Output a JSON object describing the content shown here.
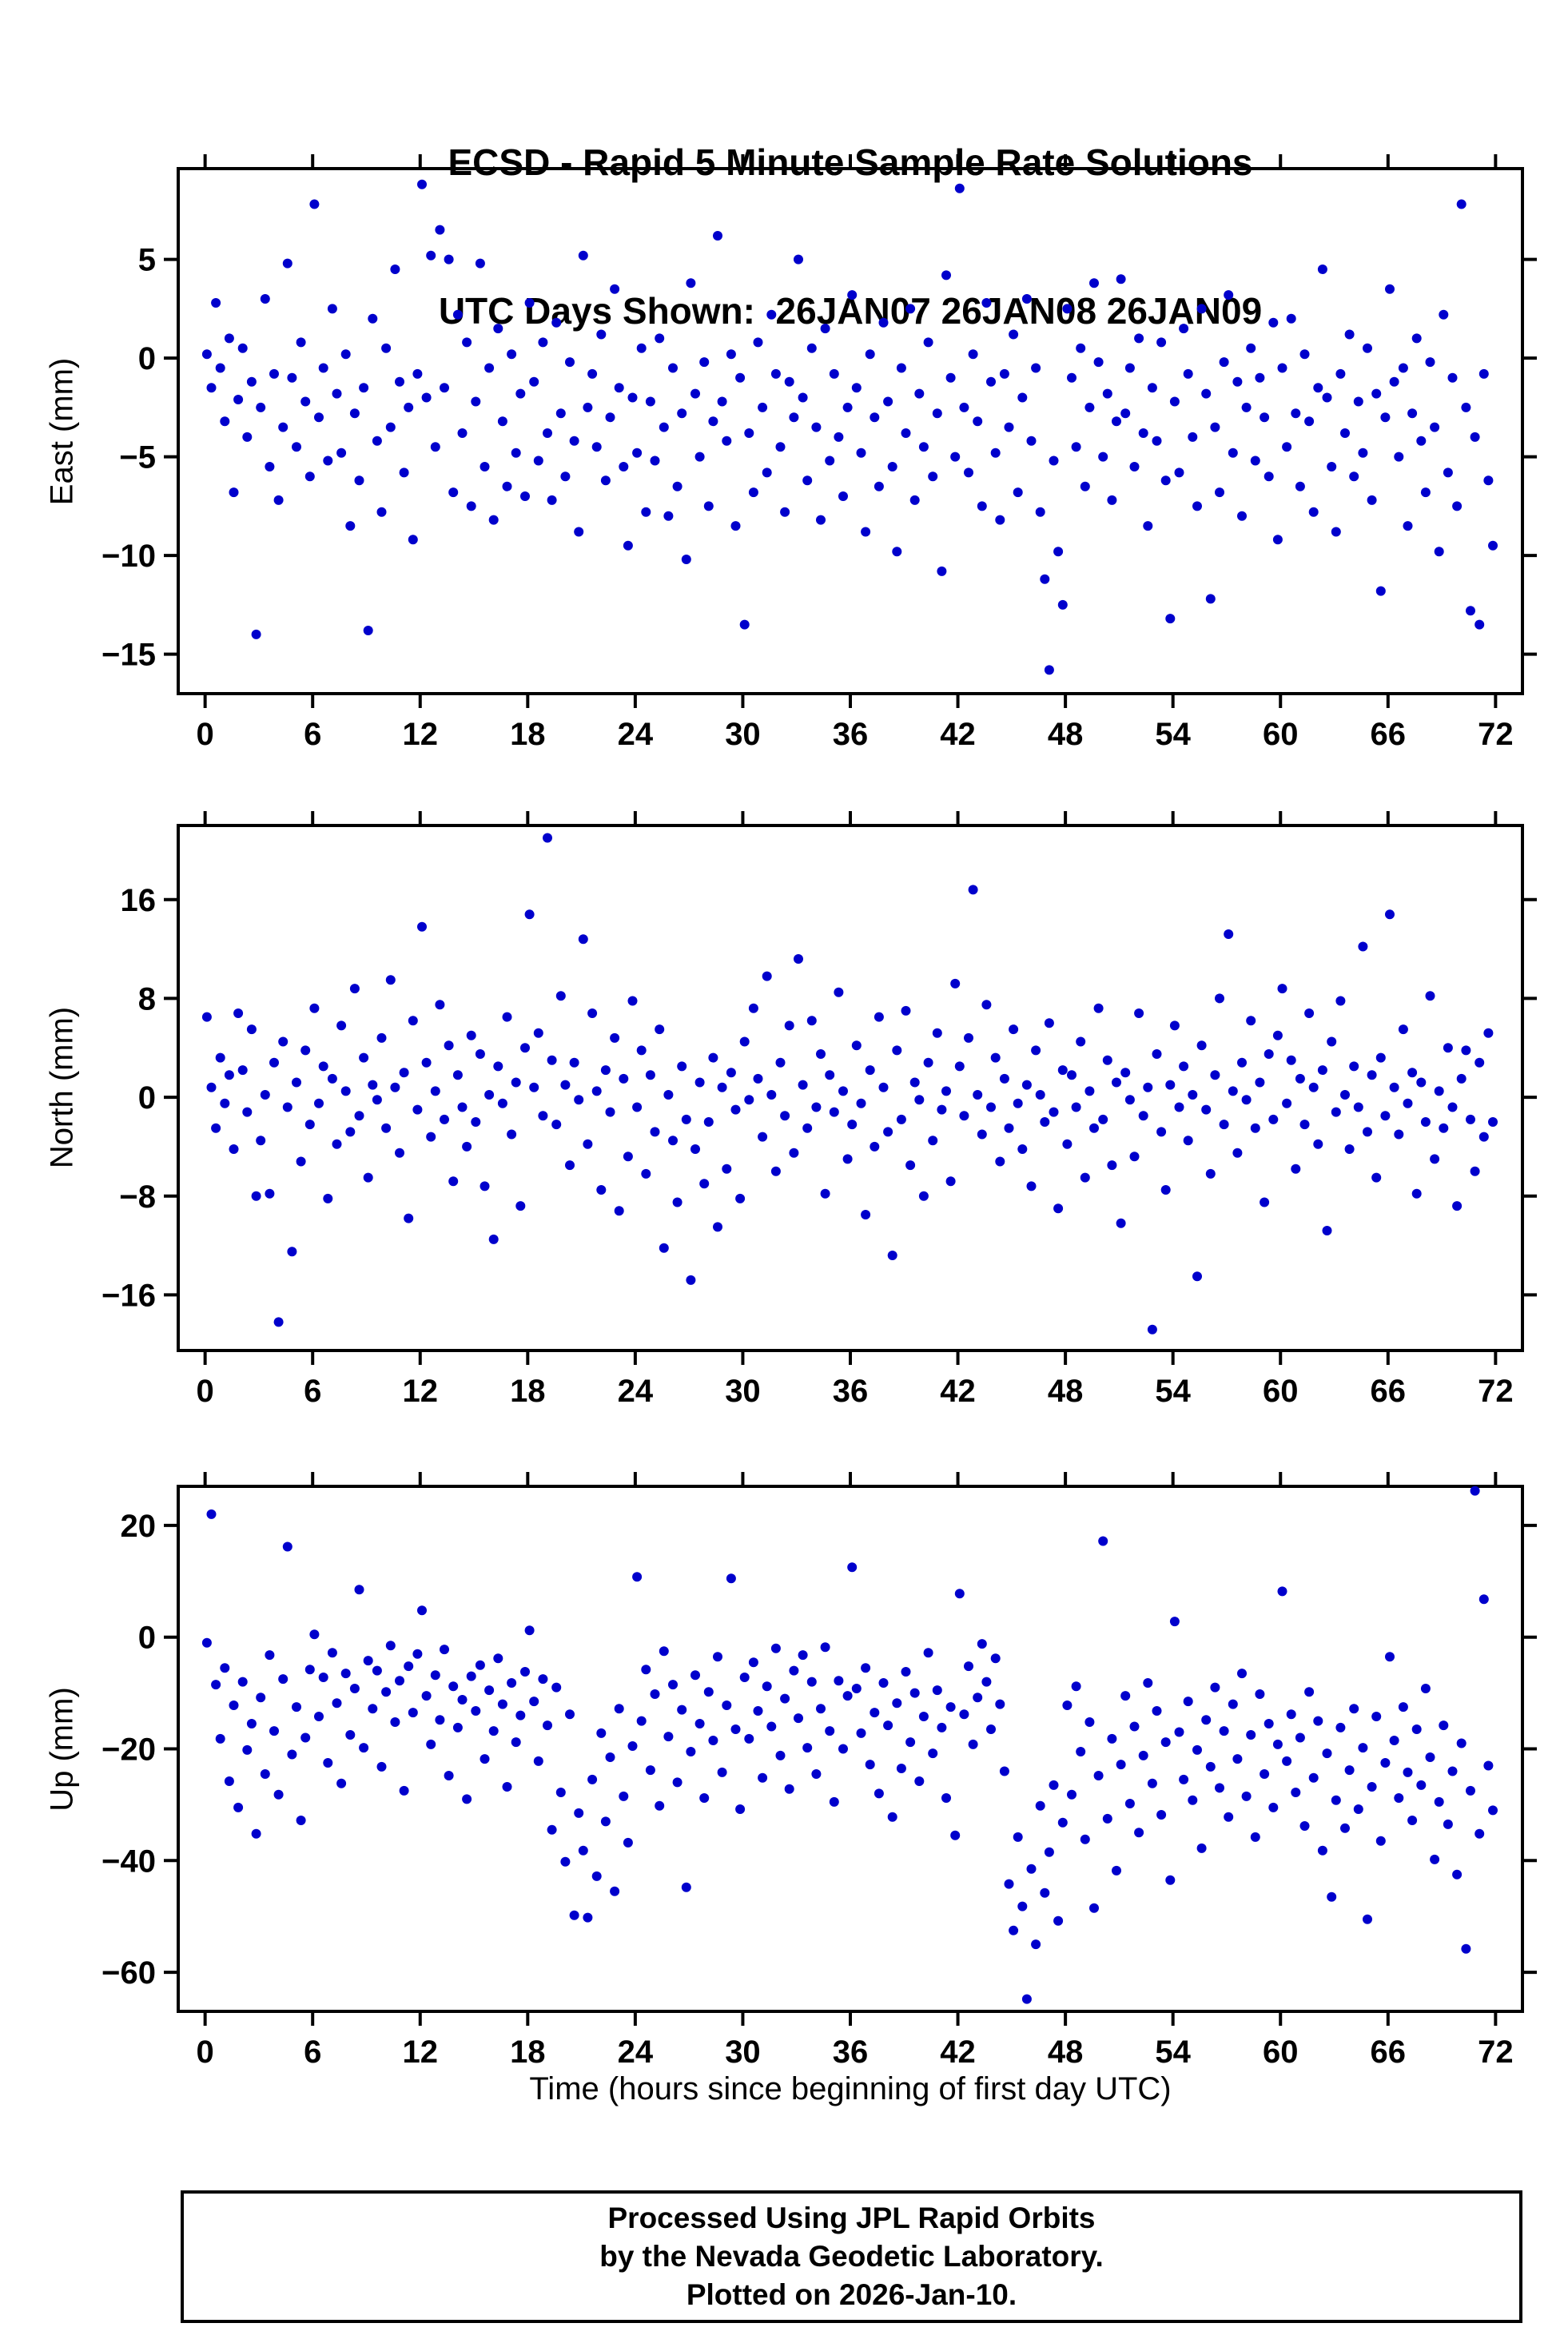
{
  "title": {
    "line1": "ECSD - Rapid 5 Minute Sample Rate Solutions",
    "line2": "UTC Days Shown:  26JAN07 26JAN08 26JAN09"
  },
  "x_axis_title": "Time (hours since beginning of first day UTC)",
  "footer": {
    "line1": "Processed Using JPL Rapid Orbits",
    "line2": "by the Nevada Geodetic Laboratory.",
    "line3": "Plotted on 2026-Jan-10."
  },
  "colors": {
    "point": "#0000cc",
    "frame": "#000000",
    "background": "#ffffff"
  },
  "chart_data": [
    {
      "type": "scatter",
      "name": "east",
      "ylabel": "East (mm)",
      "xlabel": "",
      "xlim": [
        -1.5,
        73.5
      ],
      "ylim": [
        -17,
        9.6
      ],
      "xticks": [
        0,
        6,
        12,
        18,
        24,
        30,
        36,
        42,
        48,
        54,
        60,
        66,
        72
      ],
      "yticks": [
        5,
        0,
        -5,
        -10,
        -15
      ],
      "x_start": 0.1,
      "x_step": 0.25,
      "values": [
        0.2,
        -1.5,
        2.8,
        -0.5,
        -3.2,
        1.0,
        -6.8,
        -2.1,
        0.5,
        -4.0,
        -1.2,
        -14.0,
        -2.5,
        3.0,
        -5.5,
        -0.8,
        -7.2,
        -3.5,
        4.8,
        -1.0,
        -4.5,
        0.8,
        -2.2,
        -6.0,
        7.8,
        -3.0,
        -0.5,
        -5.2,
        2.5,
        -1.8,
        -4.8,
        0.2,
        -8.5,
        -2.8,
        -6.2,
        -1.5,
        -13.8,
        2.0,
        -4.2,
        -7.8,
        0.5,
        -3.5,
        4.5,
        -1.2,
        -5.8,
        -2.5,
        -9.2,
        -0.8,
        8.8,
        -2.0,
        5.2,
        -4.5,
        6.5,
        -1.5,
        5.0,
        -6.8,
        2.2,
        -3.8,
        0.8,
        -7.5,
        -2.2,
        4.8,
        -5.5,
        -0.5,
        -8.2,
        1.5,
        -3.2,
        -6.5,
        0.2,
        -4.8,
        -1.8,
        -7.0,
        2.8,
        -1.2,
        -5.2,
        0.8,
        -3.8,
        -7.2,
        1.8,
        -2.8,
        -6.0,
        -0.2,
        -4.2,
        -8.8,
        5.2,
        -2.5,
        -0.8,
        -4.5,
        1.2,
        -6.2,
        -3.0,
        3.5,
        -1.5,
        -5.5,
        -9.5,
        -2.0,
        -4.8,
        0.5,
        -7.8,
        -2.2,
        -5.2,
        1.0,
        -3.5,
        -8.0,
        -0.5,
        -6.5,
        -2.8,
        -10.2,
        3.8,
        -1.8,
        -5.0,
        -0.2,
        -7.5,
        -3.2,
        6.2,
        -2.2,
        -4.2,
        0.2,
        -8.5,
        -1.0,
        -13.5,
        -3.8,
        -6.8,
        0.8,
        -2.5,
        -5.8,
        2.2,
        -0.8,
        -4.5,
        -7.8,
        -1.2,
        -3.0,
        5.0,
        -2.0,
        -6.2,
        0.5,
        -3.5,
        -8.2,
        1.5,
        -5.2,
        -0.8,
        -4.0,
        -7.0,
        -2.5,
        3.2,
        -1.5,
        -4.8,
        -8.8,
        0.2,
        -3.0,
        -6.5,
        1.8,
        -2.2,
        -5.5,
        -9.8,
        -0.5,
        -3.8,
        2.5,
        -7.2,
        -1.8,
        -4.5,
        0.8,
        -6.0,
        -2.8,
        -10.8,
        4.2,
        -1.0,
        -5.0,
        8.6,
        -2.5,
        -5.8,
        0.2,
        -3.2,
        -7.5,
        2.8,
        -1.2,
        -4.8,
        -8.2,
        -0.8,
        -3.5,
        1.2,
        -6.8,
        -2.0,
        3.0,
        -4.2,
        -0.5,
        -7.8,
        -11.2,
        -15.8,
        -5.2,
        -9.8,
        -12.5,
        2.5,
        -1.0,
        -4.5,
        0.5,
        -6.5,
        -2.5,
        3.8,
        -0.2,
        -5.0,
        -1.8,
        -7.2,
        -3.2,
        4.0,
        -2.8,
        -0.5,
        -5.5,
        1.0,
        -3.8,
        -8.5,
        -1.5,
        -4.2,
        0.8,
        -6.2,
        -13.2,
        -2.2,
        -5.8,
        1.5,
        -0.8,
        -4.0,
        -7.5,
        2.5,
        -1.8,
        -12.2,
        -3.5,
        -6.8,
        -0.2,
        3.2,
        -4.8,
        -1.2,
        -8.0,
        -2.5,
        0.5,
        -5.2,
        -1.0,
        -3.0,
        -6.0,
        1.8,
        -9.2,
        -0.5,
        -4.5,
        2.0,
        -2.8,
        -6.5,
        0.2,
        -3.2,
        -7.8,
        -1.5,
        4.5,
        -2.0,
        -5.5,
        -8.8,
        -0.8,
        -3.8,
        1.2,
        -6.0,
        -2.2,
        -4.8,
        0.5,
        -7.2,
        -1.8,
        -11.8,
        -3.0,
        3.5,
        -1.2,
        -5.0,
        -0.5,
        -8.5,
        -2.8,
        1.0,
        -4.2,
        -6.8,
        -0.2,
        -3.5,
        -9.8,
        2.2,
        -5.8,
        -1.0,
        -7.5,
        7.8,
        -2.5,
        -12.8,
        -4.0,
        -13.5,
        -0.8,
        -6.2,
        -9.5
      ]
    },
    {
      "type": "scatter",
      "name": "north",
      "ylabel": "North (mm)",
      "xlabel": "",
      "xlim": [
        -1.5,
        73.5
      ],
      "ylim": [
        -20.5,
        22
      ],
      "xticks": [
        0,
        6,
        12,
        18,
        24,
        30,
        36,
        42,
        48,
        54,
        60,
        66,
        72
      ],
      "yticks": [
        16,
        8,
        0,
        -8,
        -16
      ],
      "x_start": 0.1,
      "x_step": 0.25,
      "values": [
        6.5,
        0.8,
        -2.5,
        3.2,
        -0.5,
        1.8,
        -4.2,
        6.8,
        2.2,
        -1.2,
        5.5,
        -8.0,
        -3.5,
        0.2,
        -7.8,
        2.8,
        -18.2,
        4.5,
        -0.8,
        -12.5,
        1.2,
        -5.2,
        3.8,
        -2.2,
        7.2,
        -0.5,
        2.5,
        -8.2,
        1.5,
        -3.8,
        5.8,
        0.5,
        -2.8,
        8.8,
        -1.5,
        3.2,
        -6.5,
        1.0,
        -0.2,
        4.8,
        -2.5,
        9.5,
        0.8,
        -4.5,
        2.0,
        -9.8,
        6.2,
        -1.0,
        13.8,
        2.8,
        -3.2,
        0.5,
        7.5,
        -1.8,
        4.2,
        -6.8,
        1.8,
        -0.8,
        -4.0,
        5.0,
        -2.0,
        3.5,
        -7.2,
        0.2,
        -11.5,
        2.5,
        -0.5,
        6.5,
        -3.0,
        1.2,
        -8.8,
        4.0,
        14.8,
        0.8,
        5.2,
        -1.5,
        21.0,
        3.0,
        -2.2,
        8.2,
        1.0,
        -5.5,
        2.8,
        -0.2,
        12.8,
        -3.8,
        6.8,
        0.5,
        -7.5,
        2.2,
        -1.2,
        4.8,
        -9.2,
        1.5,
        -4.8,
        7.8,
        -0.8,
        3.8,
        -6.2,
        1.8,
        -2.8,
        5.5,
        -12.2,
        0.2,
        -3.5,
        -8.5,
        2.5,
        -1.8,
        -14.8,
        -4.2,
        1.2,
        -7.0,
        -2.0,
        3.2,
        -10.5,
        0.8,
        -5.8,
        2.0,
        -1.0,
        -8.2,
        4.5,
        -0.2,
        7.2,
        1.5,
        -3.2,
        9.8,
        0.2,
        -6.0,
        2.8,
        -1.5,
        5.8,
        -4.5,
        11.2,
        1.0,
        -2.5,
        6.2,
        -0.8,
        3.5,
        -7.8,
        1.8,
        -1.2,
        8.5,
        0.5,
        -5.0,
        -2.2,
        4.2,
        -0.5,
        -9.5,
        2.2,
        -4.0,
        6.5,
        0.8,
        -2.8,
        -12.8,
        3.8,
        -1.8,
        7.0,
        -5.5,
        1.2,
        -0.2,
        -8.0,
        2.8,
        -3.5,
        5.2,
        -1.0,
        0.5,
        -6.8,
        9.2,
        2.5,
        -1.5,
        4.8,
        16.8,
        0.2,
        -3.0,
        7.5,
        -0.8,
        3.2,
        -5.2,
        1.5,
        -2.5,
        5.5,
        -0.5,
        -4.2,
        1.0,
        -7.2,
        3.8,
        0.2,
        -2.0,
        6.0,
        -1.2,
        -9.0,
        2.2,
        -3.8,
        1.8,
        -0.8,
        4.5,
        -6.5,
        0.5,
        -2.5,
        7.2,
        -1.8,
        3.0,
        -5.5,
        1.2,
        -10.2,
        2.0,
        -0.2,
        -4.8,
        6.8,
        -1.5,
        0.8,
        -18.8,
        3.5,
        -2.8,
        -7.5,
        1.0,
        5.8,
        -0.8,
        2.5,
        -3.5,
        0.2,
        -14.5,
        4.2,
        -1.0,
        -6.2,
        1.8,
        8.0,
        -2.2,
        13.2,
        0.5,
        -4.5,
        2.8,
        -0.2,
        6.2,
        -2.5,
        1.2,
        -8.5,
        3.5,
        -1.8,
        5.0,
        8.8,
        -0.5,
        3.0,
        -5.8,
        1.5,
        -2.2,
        6.8,
        0.8,
        -3.8,
        2.2,
        -10.8,
        4.5,
        -1.2,
        7.8,
        0.2,
        -4.2,
        2.5,
        -0.8,
        12.2,
        -2.8,
        1.8,
        -6.5,
        3.2,
        -1.5,
        14.8,
        0.8,
        -3.0,
        5.5,
        -0.5,
        2.0,
        -7.8,
        1.2,
        -2.0,
        8.2,
        -5.0,
        0.5,
        -2.5,
        4.0,
        -0.8,
        -8.8,
        1.5,
        3.8,
        -1.8,
        -6.0,
        2.8,
        -3.2,
        5.2,
        -2.0
      ]
    },
    {
      "type": "scatter",
      "name": "up",
      "ylabel": "Up (mm)",
      "xlabel": "Time (hours since beginning of first day UTC)",
      "xlim": [
        -1.5,
        73.5
      ],
      "ylim": [
        -67,
        27
      ],
      "xticks": [
        0,
        6,
        12,
        18,
        24,
        30,
        36,
        42,
        48,
        54,
        60,
        66,
        72
      ],
      "yticks": [
        20,
        0,
        -20,
        -40,
        -60
      ],
      "x_start": 0.1,
      "x_step": 0.25,
      "values": [
        -1.0,
        22.0,
        -8.5,
        -18.2,
        -5.5,
        -25.8,
        -12.2,
        -30.5,
        -8.0,
        -20.2,
        -15.5,
        -35.2,
        -10.8,
        -24.5,
        -3.2,
        -16.8,
        -28.2,
        -7.5,
        16.2,
        -21.0,
        -12.5,
        -32.8,
        -18.0,
        -5.8,
        0.5,
        -14.2,
        -7.2,
        -22.5,
        -2.8,
        -11.8,
        -26.2,
        -6.5,
        -17.5,
        -9.2,
        8.5,
        -19.8,
        -4.2,
        -12.8,
        -6.0,
        -23.2,
        -9.8,
        -1.5,
        -15.2,
        -7.8,
        -27.5,
        -5.2,
        -13.5,
        -3.0,
        4.8,
        -10.5,
        -19.2,
        -6.8,
        -14.8,
        -2.2,
        -24.8,
        -8.8,
        -16.2,
        -11.2,
        -29.0,
        -7.0,
        -13.2,
        -5.0,
        -21.8,
        -9.5,
        -16.8,
        -3.8,
        -12.0,
        -26.8,
        -8.2,
        -18.8,
        -14.0,
        -6.2,
        1.2,
        -11.5,
        -22.2,
        -7.5,
        -15.8,
        -34.5,
        -9.0,
        -27.8,
        -40.2,
        -13.8,
        -49.8,
        -31.5,
        -38.2,
        -50.2,
        -25.5,
        -42.8,
        -17.2,
        -33.0,
        -21.5,
        -45.5,
        -12.8,
        -28.5,
        -36.8,
        -19.5,
        10.8,
        -15.0,
        -5.8,
        -23.8,
        -10.2,
        -30.2,
        -2.5,
        -17.8,
        -8.5,
        -26.0,
        -13.0,
        -44.8,
        -20.5,
        -6.8,
        -15.5,
        -28.8,
        -9.8,
        -18.5,
        -3.5,
        -24.2,
        -12.2,
        10.5,
        -16.5,
        -30.8,
        -7.2,
        -18.2,
        -4.5,
        -13.2,
        -25.2,
        -8.8,
        -16.0,
        -2.0,
        -21.2,
        -11.0,
        -27.2,
        -6.0,
        -14.5,
        -3.2,
        -19.8,
        -8.0,
        -24.5,
        -12.8,
        -1.8,
        -16.8,
        -29.5,
        -7.8,
        -20.0,
        -10.5,
        12.5,
        -9.2,
        -17.2,
        -5.5,
        -22.8,
        -13.5,
        -28.0,
        -8.2,
        -15.8,
        -32.2,
        -11.8,
        -23.5,
        -6.2,
        -18.8,
        -10.0,
        -25.8,
        -14.2,
        -2.8,
        -20.8,
        -9.5,
        -16.2,
        -28.8,
        -12.5,
        -35.5,
        7.8,
        -13.8,
        -5.2,
        -19.2,
        -10.8,
        -1.2,
        -8.0,
        -16.5,
        -3.8,
        -12.0,
        -24.0,
        -44.2,
        -52.5,
        -35.8,
        -48.2,
        -64.8,
        -41.5,
        -55.0,
        -30.2,
        -45.8,
        -38.5,
        -26.5,
        -50.8,
        -33.2,
        -12.2,
        -28.2,
        -8.8,
        -20.5,
        -36.2,
        -15.2,
        -48.5,
        -24.8,
        17.2,
        -32.5,
        -18.2,
        -41.8,
        -22.8,
        -10.5,
        -29.8,
        -16.0,
        -35.0,
        -21.2,
        -8.2,
        -26.2,
        -13.2,
        -31.8,
        -18.8,
        -43.5,
        2.8,
        -17.0,
        -25.5,
        -11.5,
        -29.2,
        -20.2,
        -37.8,
        -14.8,
        -23.2,
        -9.0,
        -27.0,
        -16.8,
        -32.2,
        -12.0,
        -21.8,
        -6.5,
        -28.5,
        -17.5,
        -35.8,
        -10.2,
        -24.5,
        -15.5,
        -30.5,
        -19.2,
        8.2,
        -22.2,
        -13.8,
        -27.8,
        -18.0,
        -33.8,
        -9.8,
        -25.2,
        -15.0,
        -38.2,
        -20.8,
        -46.5,
        -29.2,
        -16.2,
        -34.2,
        -23.8,
        -12.8,
        -30.8,
        -19.8,
        -50.5,
        -26.8,
        -14.2,
        -36.5,
        -22.5,
        -3.5,
        -18.5,
        -28.8,
        -12.5,
        -24.2,
        -32.8,
        -16.5,
        -26.5,
        -9.2,
        -21.5,
        -39.8,
        -29.5,
        -15.8,
        -33.5,
        -24.0,
        -42.5,
        -19.0,
        -55.8,
        -27.5,
        26.2,
        -35.2,
        6.8,
        -23.0,
        -31.0
      ]
    }
  ]
}
